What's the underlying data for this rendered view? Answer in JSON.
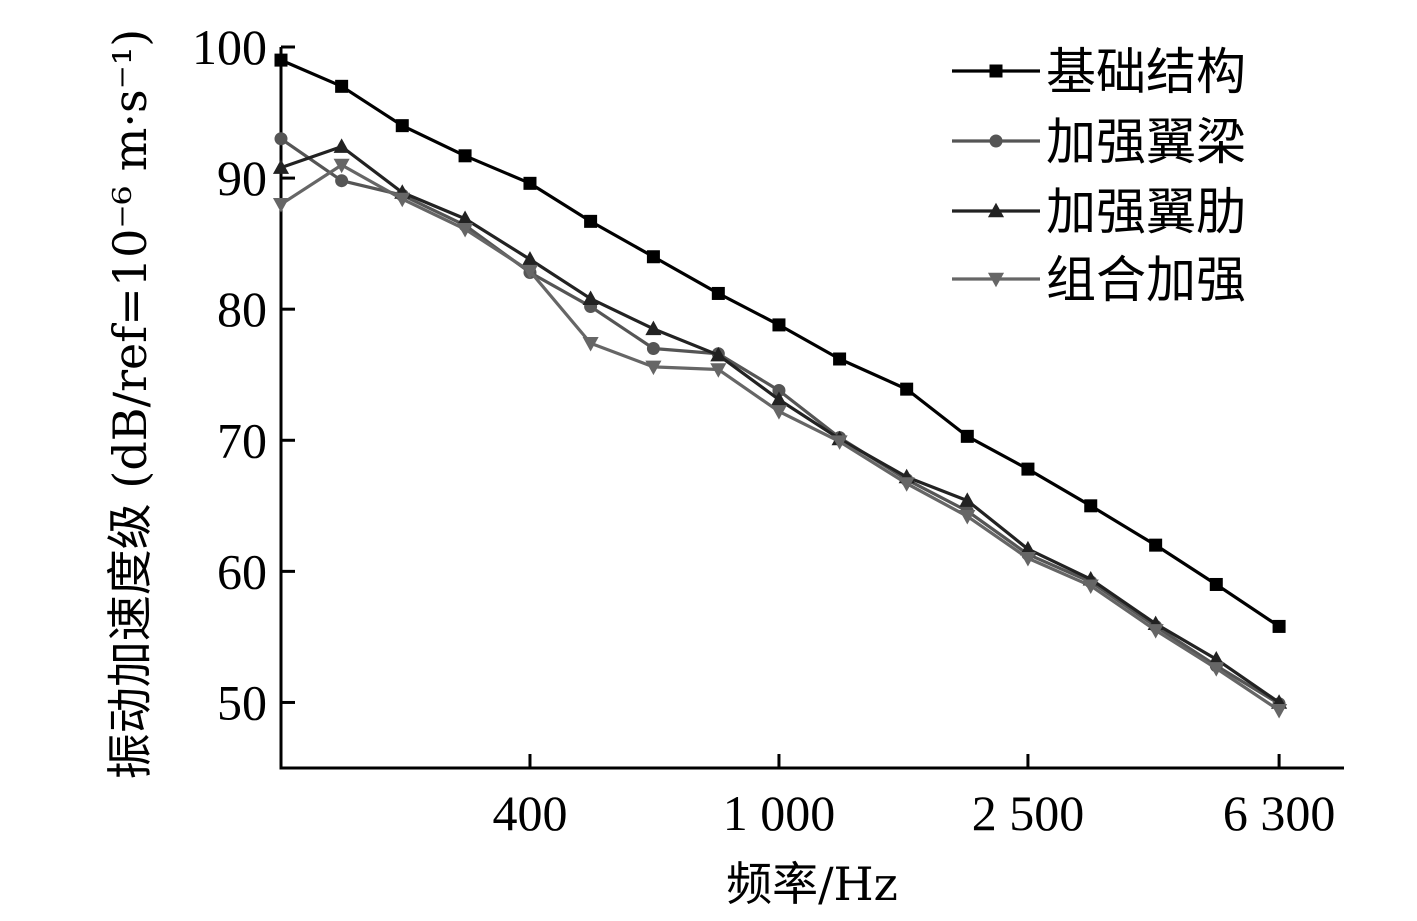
{
  "chart_data": {
    "type": "line",
    "xlabel": "频率/Hz",
    "ylabel": "振动加速度级 (dB/ref=10⁻⁶ m·s⁻¹)",
    "x": [
      160,
      200,
      250,
      315,
      400,
      500,
      630,
      800,
      1000,
      1250,
      1600,
      2000,
      2500,
      3150,
      4000,
      5000,
      6300,
      8000
    ],
    "x_scale": "log",
    "xlim": [
      160,
      8000
    ],
    "x_ticks": [
      400,
      1000,
      2500,
      6300
    ],
    "x_tick_labels": [
      "400",
      "1 000",
      "2 500",
      "6 300"
    ],
    "ylim": [
      45,
      100
    ],
    "y_ticks": [
      50,
      60,
      70,
      80,
      90,
      100
    ],
    "y_tick_labels": [
      "50",
      "60",
      "70",
      "80",
      "90",
      "100"
    ],
    "grid": false,
    "legend_position": "top-right",
    "series": [
      {
        "name": "基础结构",
        "marker": "square",
        "color": "#000000",
        "values": [
          99.0,
          97.0,
          94.0,
          91.7,
          89.6,
          86.7,
          84.0,
          81.2,
          78.8,
          76.2,
          73.9,
          70.3,
          67.8,
          65.0,
          62.0,
          59.0,
          55.8,
          null
        ]
      },
      {
        "name": "加强翼梁",
        "marker": "circle",
        "color": "#555555",
        "values": [
          93.0,
          89.8,
          88.7,
          86.4,
          82.8,
          80.2,
          77.0,
          76.6,
          73.8,
          70.2,
          67.0,
          64.6,
          61.3,
          59.2,
          55.8,
          52.8,
          49.9,
          null
        ]
      },
      {
        "name": "加强翼肋",
        "marker": "triangle-up",
        "color": "#222222",
        "values": [
          90.8,
          92.4,
          88.9,
          86.9,
          83.8,
          80.8,
          78.5,
          76.5,
          73.1,
          70.1,
          67.2,
          65.4,
          61.7,
          59.4,
          56.0,
          53.3,
          50.0,
          null
        ]
      },
      {
        "name": "组合加强",
        "marker": "triangle-down",
        "color": "#666666",
        "values": [
          88.0,
          91.0,
          88.4,
          86.1,
          82.9,
          77.4,
          75.6,
          75.4,
          72.2,
          69.9,
          66.7,
          64.2,
          61.0,
          58.9,
          55.5,
          52.6,
          49.4,
          null
        ]
      }
    ]
  }
}
